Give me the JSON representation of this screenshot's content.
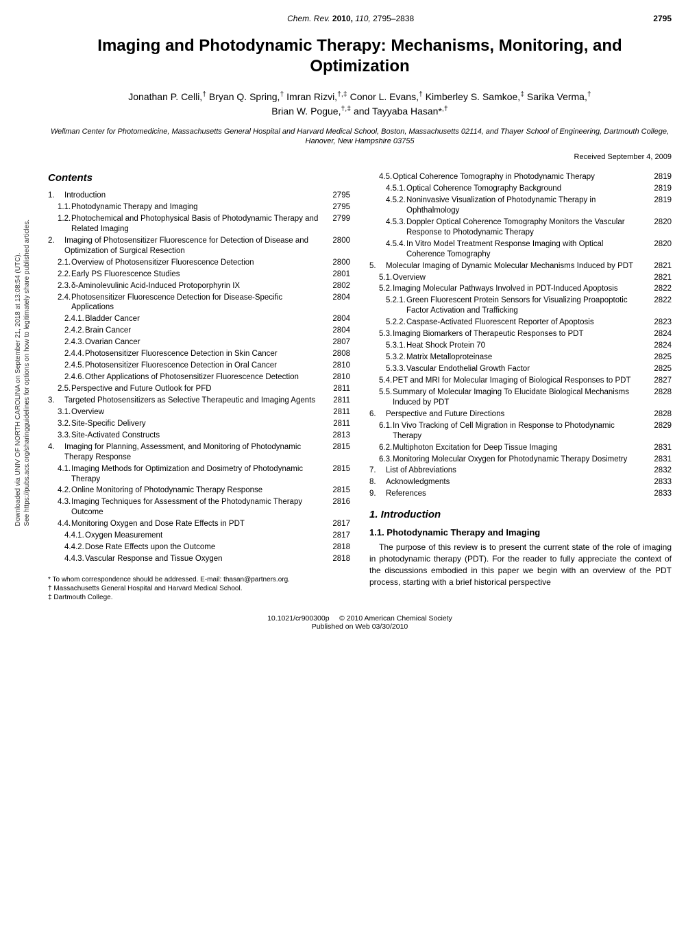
{
  "header": {
    "journal": "Chem. Rev.",
    "year": "2010,",
    "volume": "110,",
    "pages": "2795–2838",
    "page_number": "2795"
  },
  "title": "Imaging and Photodynamic Therapy: Mechanisms, Monitoring, and Optimization",
  "authors_line1": "Jonathan P. Celli,† Bryan Q. Spring,† Imran Rizvi,†,‡ Conor L. Evans,† Kimberley S. Samkoe,‡ Sarika Verma,†",
  "authors_line2": "Brian W. Pogue,†,‡ and Tayyaba Hasan*,†",
  "affiliation": "Wellman Center for Photomedicine, Massachusetts General Hospital and Harvard Medical School, Boston, Massachusetts 02114, and Thayer School of Engineering, Dartmouth College, Hanover, New Hampshire 03755",
  "received": "Received September 4, 2009",
  "contents_label": "Contents",
  "sidebar": {
    "line1": "Downloaded via UNIV OF NORTH CAROLINA on September 21, 2018 at 13:08:54 (UTC).",
    "line2": "See https://pubs.acs.org/sharingguidelines for options on how to legitimately share published articles."
  },
  "toc_left": [
    {
      "lvl": 1,
      "num": "1.",
      "text": "Introduction",
      "page": "2795"
    },
    {
      "lvl": 2,
      "num": "1.1.",
      "text": "Photodynamic Therapy and Imaging",
      "page": "2795"
    },
    {
      "lvl": 2,
      "num": "1.2.",
      "text": "Photochemical and Photophysical Basis of Photodynamic Therapy and Related Imaging",
      "page": "2799"
    },
    {
      "lvl": 1,
      "num": "2.",
      "text": "Imaging of Photosensitizer Fluorescence for Detection of Disease and Optimization of Surgical Resection",
      "page": "2800"
    },
    {
      "lvl": 2,
      "num": "2.1.",
      "text": "Overview of Photosensitizer Fluorescence Detection",
      "page": "2800"
    },
    {
      "lvl": 2,
      "num": "2.2.",
      "text": "Early PS Fluorescence Studies",
      "page": "2801"
    },
    {
      "lvl": 2,
      "num": "2.3.",
      "text": "δ-Aminolevulinic Acid-Induced Protoporphyrin IX",
      "page": "2802"
    },
    {
      "lvl": 2,
      "num": "2.4.",
      "text": "Photosensitizer Fluorescence Detection for Disease-Specific Applications",
      "page": "2804"
    },
    {
      "lvl": 3,
      "num": "2.4.1.",
      "text": "Bladder Cancer",
      "page": "2804"
    },
    {
      "lvl": 3,
      "num": "2.4.2.",
      "text": "Brain Cancer",
      "page": "2804"
    },
    {
      "lvl": 3,
      "num": "2.4.3.",
      "text": "Ovarian Cancer",
      "page": "2807"
    },
    {
      "lvl": 3,
      "num": "2.4.4.",
      "text": "Photosensitizer Fluorescence Detection in Skin Cancer",
      "page": "2808"
    },
    {
      "lvl": 3,
      "num": "2.4.5.",
      "text": "Photosensitizer Fluorescence Detection in Oral Cancer",
      "page": "2810"
    },
    {
      "lvl": 3,
      "num": "2.4.6.",
      "text": "Other Applications of Photosensitizer Fluorescence Detection",
      "page": "2810"
    },
    {
      "lvl": 2,
      "num": "2.5.",
      "text": "Perspective and Future Outlook for PFD",
      "page": "2811"
    },
    {
      "lvl": 1,
      "num": "3.",
      "text": "Targeted Photosensitizers as Selective Therapeutic and Imaging Agents",
      "page": "2811"
    },
    {
      "lvl": 2,
      "num": "3.1.",
      "text": "Overview",
      "page": "2811"
    },
    {
      "lvl": 2,
      "num": "3.2.",
      "text": "Site-Specific Delivery",
      "page": "2811"
    },
    {
      "lvl": 2,
      "num": "3.3.",
      "text": "Site-Activated Constructs",
      "page": "2813"
    },
    {
      "lvl": 1,
      "num": "4.",
      "text": "Imaging for Planning, Assessment, and Monitoring of Photodynamic Therapy Response",
      "page": "2815"
    },
    {
      "lvl": 2,
      "num": "4.1.",
      "text": "Imaging Methods for Optimization and Dosimetry of Photodynamic Therapy",
      "page": "2815"
    },
    {
      "lvl": 2,
      "num": "4.2.",
      "text": "Online Monitoring of Photodynamic Therapy Response",
      "page": "2815"
    },
    {
      "lvl": 2,
      "num": "4.3.",
      "text": "Imaging Techniques for Assessment of the Photodynamic Therapy Outcome",
      "page": "2816"
    },
    {
      "lvl": 2,
      "num": "4.4.",
      "text": "Monitoring Oxygen and Dose Rate Effects in PDT",
      "page": "2817"
    },
    {
      "lvl": 3,
      "num": "4.4.1.",
      "text": "Oxygen Measurement",
      "page": "2817"
    },
    {
      "lvl": 3,
      "num": "4.4.2.",
      "text": "Dose Rate Effects upon the Outcome",
      "page": "2818"
    },
    {
      "lvl": 3,
      "num": "4.4.3.",
      "text": "Vascular Response and Tissue Oxygen",
      "page": "2818"
    }
  ],
  "toc_right": [
    {
      "lvl": 2,
      "num": "4.5.",
      "text": "Optical Coherence Tomography in Photodynamic Therapy",
      "page": "2819"
    },
    {
      "lvl": 3,
      "num": "4.5.1.",
      "text": "Optical Coherence Tomography Background",
      "page": "2819"
    },
    {
      "lvl": 3,
      "num": "4.5.2.",
      "text": "Noninvasive Visualization of Photodynamic Therapy in Ophthalmology",
      "page": "2819"
    },
    {
      "lvl": 3,
      "num": "4.5.3.",
      "text": "Doppler Optical Coherence Tomography Monitors the Vascular Response to Photodynamic Therapy",
      "page": "2820"
    },
    {
      "lvl": 3,
      "num": "4.5.4.",
      "text": "In Vitro Model Treatment Response Imaging with Optical Coherence Tomography",
      "page": "2820"
    },
    {
      "lvl": 1,
      "num": "5.",
      "text": "Molecular Imaging of Dynamic Molecular Mechanisms Induced by PDT",
      "page": "2821"
    },
    {
      "lvl": 2,
      "num": "5.1.",
      "text": "Overview",
      "page": "2821"
    },
    {
      "lvl": 2,
      "num": "5.2.",
      "text": "Imaging Molecular Pathways Involved in PDT-Induced Apoptosis",
      "page": "2822"
    },
    {
      "lvl": 3,
      "num": "5.2.1.",
      "text": "Green Fluorescent Protein Sensors for Visualizing Proapoptotic Factor Activation and Trafficking",
      "page": "2822"
    },
    {
      "lvl": 3,
      "num": "5.2.2.",
      "text": "Caspase-Activated Fluorescent Reporter of Apoptosis",
      "page": "2823"
    },
    {
      "lvl": 2,
      "num": "5.3.",
      "text": "Imaging Biomarkers of Therapeutic Responses to PDT",
      "page": "2824"
    },
    {
      "lvl": 3,
      "num": "5.3.1.",
      "text": "Heat Shock Protein 70",
      "page": "2824"
    },
    {
      "lvl": 3,
      "num": "5.3.2.",
      "text": "Matrix Metalloproteinase",
      "page": "2825"
    },
    {
      "lvl": 3,
      "num": "5.3.3.",
      "text": "Vascular Endothelial Growth Factor",
      "page": "2825"
    },
    {
      "lvl": 2,
      "num": "5.4.",
      "text": "PET and MRI for Molecular Imaging of Biological Responses to PDT",
      "page": "2827"
    },
    {
      "lvl": 2,
      "num": "5.5.",
      "text": "Summary of Molecular Imaging To Elucidate Biological Mechanisms Induced by PDT",
      "page": "2828"
    },
    {
      "lvl": 1,
      "num": "6.",
      "text": "Perspective and Future Directions",
      "page": "2828"
    },
    {
      "lvl": 2,
      "num": "6.1.",
      "text": "In Vivo Tracking of Cell Migration in Response to Photodynamic Therapy",
      "page": "2829"
    },
    {
      "lvl": 2,
      "num": "6.2.",
      "text": "Multiphoton Excitation for Deep Tissue Imaging",
      "page": "2831"
    },
    {
      "lvl": 2,
      "num": "6.3.",
      "text": "Monitoring Molecular Oxygen for Photodynamic Therapy Dosimetry",
      "page": "2831"
    },
    {
      "lvl": 1,
      "num": "7.",
      "text": "List of Abbreviations",
      "page": "2832"
    },
    {
      "lvl": 1,
      "num": "8.",
      "text": "Acknowledgments",
      "page": "2833"
    },
    {
      "lvl": 1,
      "num": "9.",
      "text": "References",
      "page": "2833"
    }
  ],
  "section1": {
    "heading": "1. Introduction",
    "sub": "1.1. Photodynamic Therapy and Imaging",
    "para": "The purpose of this review is to present the current state of the role of imaging in photodynamic therapy (PDT). For the reader to fully appreciate the context of the discussions embodied in this paper we begin with an overview of the PDT process, starting with a brief historical perspective"
  },
  "footnotes": {
    "corr": "* To whom correspondence should be addressed. E-mail: thasan@partners.org.",
    "aff1": "† Massachusetts General Hospital and Harvard Medical School.",
    "aff2": "‡ Dartmouth College."
  },
  "footer": {
    "doi": "10.1021/cr900300p",
    "copyright": "© 2010 American Chemical Society",
    "pubdate": "Published on Web 03/30/2010"
  },
  "style": {
    "background_color": "#ffffff",
    "text_color": "#000000",
    "title_fontsize": 24,
    "body_fontsize": 12,
    "toc_fontsize": 11.5,
    "font_family": "Arial, Helvetica, sans-serif"
  }
}
